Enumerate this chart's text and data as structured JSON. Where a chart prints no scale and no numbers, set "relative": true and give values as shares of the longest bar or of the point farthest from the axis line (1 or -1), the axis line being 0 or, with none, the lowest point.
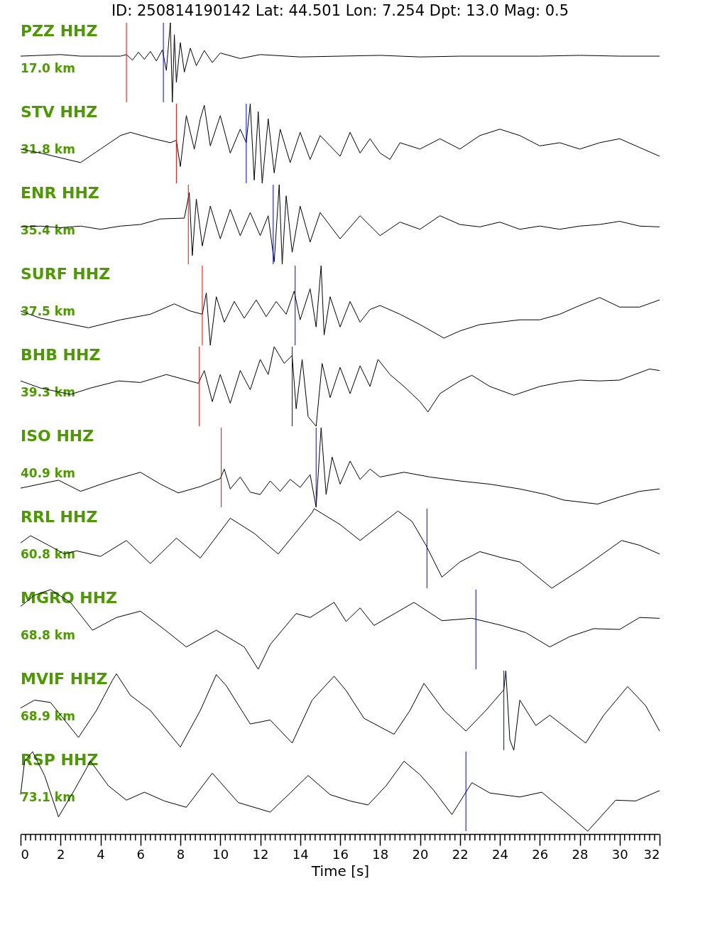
{
  "chart_data": [
    {
      "type": "line",
      "relative": true,
      "title": "ID: 250814190142 Lat:  44.501 Lon:   7.254 Dpt:    13.0 Mag:   0.5",
      "xlim": [
        0,
        32
      ],
      "tick_labels": false,
      "annotations": [
        "PZZ HHZ",
        "17.0 km"
      ],
      "ref_lines": [
        {
          "axis": "x",
          "value": 5.3,
          "color": "#ff0000"
        },
        {
          "axis": "x",
          "value": 7.15,
          "color": "#0000ff"
        }
      ],
      "series": [
        {
          "color": "#000000",
          "x": [
            0,
            1,
            2,
            3,
            4,
            5,
            5.3,
            5.6,
            5.9,
            6.2,
            6.5,
            6.8,
            7.1,
            7.3,
            7.5,
            7.6,
            7.7,
            7.8,
            8.0,
            8.2,
            8.5,
            8.8,
            9.2,
            9.6,
            10,
            11,
            12,
            14,
            16,
            18,
            20,
            22,
            24,
            26,
            28,
            30,
            32
          ],
          "values": [
            0.58,
            0.59,
            0.6,
            0.58,
            0.58,
            0.58,
            0.6,
            0.53,
            0.63,
            0.54,
            0.64,
            0.52,
            0.66,
            0.4,
            1.0,
            0.0,
            0.85,
            0.25,
            0.75,
            0.38,
            0.68,
            0.46,
            0.65,
            0.5,
            0.62,
            0.55,
            0.6,
            0.57,
            0.58,
            0.59,
            0.57,
            0.58,
            0.58,
            0.58,
            0.59,
            0.58,
            0.58
          ]
        }
      ]
    },
    {
      "type": "line",
      "relative": true,
      "xlim": [
        0,
        32
      ],
      "tick_labels": false,
      "annotations": [
        "STV HHZ",
        "31.8 km"
      ],
      "ref_lines": [
        {
          "axis": "x",
          "value": 7.8,
          "color": "#ff0000"
        },
        {
          "axis": "x",
          "value": 11.3,
          "color": "#0000ff"
        }
      ],
      "series": [
        {
          "color": "#000000",
          "x": [
            0,
            1,
            2,
            3,
            4,
            5,
            5.5,
            6.5,
            7.5,
            7.8,
            8.0,
            8.3,
            8.7,
            9.0,
            9.2,
            9.5,
            10.0,
            10.5,
            11.0,
            11.3,
            11.5,
            11.7,
            11.9,
            12.1,
            12.4,
            12.7,
            13.0,
            13.5,
            14,
            14.5,
            15,
            16,
            16.5,
            17,
            17.5,
            18,
            18.5,
            19,
            20,
            21,
            22,
            23,
            24,
            25,
            26,
            27,
            28,
            29,
            30,
            31,
            32
          ],
          "values": [
            0.43,
            0.38,
            0.32,
            0.26,
            0.43,
            0.6,
            0.64,
            0.57,
            0.51,
            0.54,
            0.21,
            0.85,
            0.43,
            0.81,
            0.98,
            0.47,
            0.85,
            0.38,
            0.68,
            0.51,
            1.0,
            0.04,
            0.9,
            0.0,
            0.81,
            0.13,
            0.68,
            0.26,
            0.64,
            0.3,
            0.6,
            0.34,
            0.64,
            0.38,
            0.56,
            0.38,
            0.3,
            0.51,
            0.43,
            0.56,
            0.43,
            0.6,
            0.68,
            0.6,
            0.47,
            0.51,
            0.43,
            0.51,
            0.56,
            0.45,
            0.34
          ]
        }
      ]
    },
    {
      "type": "line",
      "relative": true,
      "xlim": [
        0,
        32
      ],
      "tick_labels": false,
      "annotations": [
        "ENR HHZ",
        "35.4 km"
      ],
      "ref_lines": [
        {
          "axis": "x",
          "value": 8.4,
          "color": "#ff0000"
        },
        {
          "axis": "x",
          "value": 12.65,
          "color": "#0000ff"
        }
      ],
      "series": [
        {
          "color": "#000000",
          "x": [
            0,
            1,
            2,
            3,
            4,
            5,
            6,
            7,
            8.2,
            8.45,
            8.6,
            8.8,
            9.1,
            9.5,
            10,
            10.5,
            11,
            11.5,
            12,
            12.4,
            12.7,
            12.95,
            13.1,
            13.3,
            13.6,
            14,
            14.5,
            15,
            16,
            17,
            18,
            19,
            20,
            21,
            22,
            23,
            24,
            25,
            26,
            27,
            28,
            29,
            30,
            31,
            32
          ],
          "values": [
            0.47,
            0.48,
            0.46,
            0.48,
            0.44,
            0.48,
            0.5,
            0.57,
            0.58,
            0.9,
            0.11,
            0.82,
            0.23,
            0.73,
            0.32,
            0.69,
            0.36,
            0.65,
            0.36,
            0.61,
            0.03,
            1.0,
            0.0,
            0.86,
            0.15,
            0.73,
            0.28,
            0.65,
            0.32,
            0.61,
            0.36,
            0.53,
            0.44,
            0.61,
            0.5,
            0.47,
            0.53,
            0.44,
            0.48,
            0.44,
            0.48,
            0.5,
            0.54,
            0.48,
            0.47
          ]
        }
      ]
    },
    {
      "type": "line",
      "relative": true,
      "xlim": [
        0,
        32
      ],
      "tick_labels": false,
      "annotations": [
        "SURF HHZ",
        "37.5 km"
      ],
      "ref_lines": [
        {
          "axis": "x",
          "value": 9.1,
          "color": "#ff0000"
        },
        {
          "axis": "x",
          "value": 13.75,
          "color": "#0000ff"
        }
      ],
      "series": [
        {
          "color": "#000000",
          "x": [
            0,
            1,
            2,
            3.4,
            5,
            6.5,
            7.7,
            8.5,
            9.1,
            9.3,
            9.5,
            9.8,
            10.2,
            10.7,
            11.2,
            11.8,
            12.3,
            12.8,
            13.3,
            13.7,
            14.0,
            14.5,
            14.8,
            15.05,
            15.2,
            15.5,
            16,
            16.5,
            17,
            17.5,
            18,
            19,
            20,
            21.2,
            22,
            23,
            24,
            25,
            26,
            27,
            28,
            29,
            30,
            31,
            32
          ],
          "values": [
            0.43,
            0.34,
            0.29,
            0.22,
            0.32,
            0.39,
            0.52,
            0.43,
            0.39,
            0.66,
            0.0,
            0.61,
            0.29,
            0.55,
            0.34,
            0.57,
            0.36,
            0.55,
            0.39,
            0.68,
            0.32,
            0.71,
            0.23,
            1.0,
            0.13,
            0.61,
            0.23,
            0.55,
            0.29,
            0.45,
            0.5,
            0.39,
            0.26,
            0.09,
            0.18,
            0.26,
            0.29,
            0.32,
            0.32,
            0.39,
            0.5,
            0.6,
            0.48,
            0.48,
            0.57
          ]
        }
      ]
    },
    {
      "type": "line",
      "relative": true,
      "xlim": [
        0,
        32
      ],
      "tick_labels": false,
      "annotations": [
        "BHB HHZ",
        "39.3 km"
      ],
      "ref_lines": [
        {
          "axis": "x",
          "value": 8.95,
          "color": "#ff0000"
        },
        {
          "axis": "x",
          "value": 13.6,
          "color": "#0000ff"
        }
      ],
      "series": [
        {
          "color": "#000000",
          "x": [
            0,
            1,
            2.5,
            3.5,
            4.9,
            6,
            7.3,
            8.9,
            9.2,
            9.6,
            10,
            10.5,
            11,
            11.5,
            12,
            12.4,
            12.7,
            13.2,
            13.6,
            13.8,
            14.1,
            14.4,
            14.8,
            15.1,
            15.5,
            16,
            16.5,
            17,
            17.5,
            17.9,
            18.5,
            19.2,
            20,
            20.4,
            21,
            22,
            22.6,
            23.5,
            24.7,
            26,
            27,
            28,
            29,
            30,
            31.5,
            32
          ],
          "values": [
            0.57,
            0.48,
            0.4,
            0.48,
            0.57,
            0.55,
            0.65,
            0.54,
            0.7,
            0.31,
            0.65,
            0.29,
            0.7,
            0.46,
            0.84,
            0.65,
            1.0,
            0.79,
            0.89,
            0.22,
            0.84,
            0.12,
            0.0,
            0.79,
            0.36,
            0.74,
            0.41,
            0.76,
            0.5,
            0.84,
            0.65,
            0.5,
            0.31,
            0.18,
            0.41,
            0.57,
            0.64,
            0.5,
            0.39,
            0.5,
            0.55,
            0.58,
            0.57,
            0.58,
            0.72,
            0.7
          ]
        }
      ]
    },
    {
      "type": "line",
      "relative": true,
      "xlim": [
        0,
        32
      ],
      "tick_labels": false,
      "annotations": [
        "ISO HHZ",
        "40.9 km"
      ],
      "ref_lines": [
        {
          "axis": "x",
          "value": 10.05,
          "color": "#ff0000"
        },
        {
          "axis": "x",
          "value": 14.8,
          "color": "#0000ff"
        }
      ],
      "series": [
        {
          "color": "#000000",
          "x": [
            0,
            1.9,
            3,
            4.5,
            6,
            7,
            7.9,
            9,
            10,
            10.2,
            10.5,
            11,
            11.5,
            12,
            12.5,
            13,
            13.5,
            14,
            14.5,
            14.8,
            15.05,
            15.3,
            15.6,
            16,
            16.5,
            17,
            17.5,
            18,
            19.2,
            20.5,
            22,
            23.5,
            25,
            26.3,
            27.2,
            28.9,
            30,
            31,
            32
          ],
          "values": [
            0.24,
            0.34,
            0.2,
            0.33,
            0.44,
            0.29,
            0.18,
            0.26,
            0.36,
            0.48,
            0.23,
            0.38,
            0.19,
            0.16,
            0.33,
            0.2,
            0.35,
            0.25,
            0.41,
            0.0,
            1.0,
            0.16,
            0.63,
            0.29,
            0.58,
            0.35,
            0.48,
            0.38,
            0.44,
            0.38,
            0.33,
            0.29,
            0.23,
            0.16,
            0.09,
            0.04,
            0.13,
            0.2,
            0.23
          ]
        }
      ]
    },
    {
      "type": "line",
      "relative": true,
      "xlim": [
        0,
        32
      ],
      "tick_labels": false,
      "annotations": [
        "RRL HHZ",
        "60.8 km"
      ],
      "ref_lines": [
        {
          "axis": "x",
          "value": 20.35,
          "color": "#0000ff"
        }
      ],
      "series": [
        {
          "color": "#000000",
          "x": [
            0,
            0.5,
            1.4,
            2.2,
            2.8,
            4.0,
            5.3,
            6.5,
            7.8,
            9.0,
            10.5,
            11.7,
            12.9,
            14.6,
            14.7,
            16.0,
            17.0,
            18.9,
            19.6,
            20.3,
            21.1,
            22.0,
            23.0,
            24.0,
            25.0,
            26.6,
            28.2,
            30.1,
            31.0,
            32
          ],
          "values": [
            0.57,
            0.66,
            0.54,
            0.43,
            0.47,
            0.4,
            0.6,
            0.31,
            0.63,
            0.38,
            0.88,
            0.69,
            0.43,
            0.95,
            1.0,
            0.8,
            0.6,
            0.97,
            0.84,
            0.54,
            0.14,
            0.33,
            0.46,
            0.39,
            0.33,
            0.0,
            0.26,
            0.6,
            0.54,
            0.43
          ]
        }
      ]
    },
    {
      "type": "line",
      "relative": true,
      "xlim": [
        0,
        32
      ],
      "tick_labels": false,
      "annotations": [
        "MGRO HHZ",
        "68.8 km"
      ],
      "ref_lines": [
        {
          "axis": "x",
          "value": 22.8,
          "color": "#0000ff"
        }
      ],
      "series": [
        {
          "color": "#000000",
          "x": [
            0,
            0.7,
            1.5,
            2.5,
            3.6,
            4.8,
            6.0,
            7.2,
            8.3,
            9.8,
            11.2,
            11.9,
            12.5,
            13.8,
            14.5,
            15.7,
            16.3,
            17.0,
            17.7,
            19.7,
            21.1,
            22.6,
            24.1,
            25.3,
            26.5,
            27.5,
            28.7,
            30,
            31,
            32
          ],
          "values": [
            0.79,
            0.93,
            1.0,
            0.84,
            0.49,
            0.65,
            0.73,
            0.5,
            0.28,
            0.49,
            0.28,
            0.0,
            0.31,
            0.7,
            0.65,
            0.84,
            0.6,
            0.77,
            0.55,
            0.84,
            0.61,
            0.64,
            0.55,
            0.46,
            0.28,
            0.41,
            0.51,
            0.5,
            0.65,
            0.64
          ]
        }
      ]
    },
    {
      "type": "line",
      "relative": true,
      "xlim": [
        0,
        32
      ],
      "tick_labels": false,
      "annotations": [
        "MVIF HHZ",
        "68.9 km"
      ],
      "ref_lines": [
        {
          "axis": "x",
          "value": 24.2,
          "color": "#0000ff"
        }
      ],
      "series": [
        {
          "color": "#000000",
          "x": [
            0,
            0.7,
            1.5,
            2.9,
            3.8,
            4.6,
            4.8,
            5.5,
            6.5,
            8.0,
            9.0,
            9.8,
            10.3,
            11.5,
            12.5,
            13.6,
            14.6,
            15.7,
            16.3,
            17.2,
            18.7,
            19.5,
            20.2,
            21.2,
            22.3,
            23.3,
            24.2,
            24.3,
            24.5,
            24.7,
            25.0,
            25.8,
            26.5,
            28.3,
            29.2,
            30.4,
            31.3,
            32
          ],
          "values": [
            0.53,
            0.63,
            0.6,
            0.16,
            0.5,
            0.88,
            0.96,
            0.69,
            0.5,
            0.04,
            0.5,
            0.95,
            0.81,
            0.33,
            0.38,
            0.09,
            0.63,
            0.93,
            0.75,
            0.4,
            0.2,
            0.5,
            0.84,
            0.5,
            0.24,
            0.5,
            0.76,
            1.0,
            0.13,
            0.0,
            0.63,
            0.31,
            0.44,
            0.09,
            0.44,
            0.8,
            0.56,
            0.24
          ]
        }
      ]
    },
    {
      "type": "line",
      "relative": true,
      "xlim": [
        0,
        32
      ],
      "tick_labels": "x",
      "xlabel": "Time [s]",
      "annotations": [
        "RSP HHZ",
        "73.1 km"
      ],
      "ref_lines": [
        {
          "axis": "x",
          "value": 22.3,
          "color": "#0000ff"
        }
      ],
      "xticks": [
        0,
        {
          "value": 0.25,
          "label": null
        },
        {
          "value": 0.5,
          "label": null
        },
        {
          "value": 0.75,
          "label": null
        },
        {
          "value": 1,
          "label": null
        },
        {
          "value": 1.25,
          "label": null
        },
        {
          "value": 1.5,
          "label": null
        },
        {
          "value": 1.75,
          "label": null
        },
        2,
        {
          "value": 2.25,
          "label": null
        },
        {
          "value": 2.5,
          "label": null
        },
        {
          "value": 2.75,
          "label": null
        },
        {
          "value": 3,
          "label": null
        },
        {
          "value": 3.25,
          "label": null
        },
        {
          "value": 3.5,
          "label": null
        },
        {
          "value": 3.75,
          "label": null
        },
        4,
        {
          "value": 4.25,
          "label": null
        },
        {
          "value": 4.5,
          "label": null
        },
        {
          "value": 4.75,
          "label": null
        },
        {
          "value": 5,
          "label": null
        },
        {
          "value": 5.25,
          "label": null
        },
        {
          "value": 5.5,
          "label": null
        },
        {
          "value": 5.75,
          "label": null
        },
        6,
        {
          "value": 6.25,
          "label": null
        },
        {
          "value": 6.5,
          "label": null
        },
        {
          "value": 6.75,
          "label": null
        },
        {
          "value": 7,
          "label": null
        },
        {
          "value": 7.25,
          "label": null
        },
        {
          "value": 7.5,
          "label": null
        },
        {
          "value": 7.75,
          "label": null
        },
        8,
        {
          "value": 8.25,
          "label": null
        },
        {
          "value": 8.5,
          "label": null
        },
        {
          "value": 8.75,
          "label": null
        },
        {
          "value": 9,
          "label": null
        },
        {
          "value": 9.25,
          "label": null
        },
        {
          "value": 9.5,
          "label": null
        },
        {
          "value": 9.75,
          "label": null
        },
        10,
        {
          "value": 10.25,
          "label": null
        },
        {
          "value": 10.5,
          "label": null
        },
        {
          "value": 10.75,
          "label": null
        },
        {
          "value": 11,
          "label": null
        },
        {
          "value": 11.25,
          "label": null
        },
        {
          "value": 11.5,
          "label": null
        },
        {
          "value": 11.75,
          "label": null
        },
        12,
        {
          "value": 12.25,
          "label": null
        },
        {
          "value": 12.5,
          "label": null
        },
        {
          "value": 12.75,
          "label": null
        },
        {
          "value": 13,
          "label": null
        },
        {
          "value": 13.25,
          "label": null
        },
        {
          "value": 13.5,
          "label": null
        },
        {
          "value": 13.75,
          "label": null
        },
        14,
        {
          "value": 14.25,
          "label": null
        },
        {
          "value": 14.5,
          "label": null
        },
        {
          "value": 14.75,
          "label": null
        },
        {
          "value": 15,
          "label": null
        },
        {
          "value": 15.25,
          "label": null
        },
        {
          "value": 15.5,
          "label": null
        },
        {
          "value": 15.75,
          "label": null
        },
        16,
        {
          "value": 16.25,
          "label": null
        },
        {
          "value": 16.5,
          "label": null
        },
        {
          "value": 16.75,
          "label": null
        },
        {
          "value": 17,
          "label": null
        },
        {
          "value": 17.25,
          "label": null
        },
        {
          "value": 17.5,
          "label": null
        },
        {
          "value": 17.75,
          "label": null
        },
        18,
        {
          "value": 18.25,
          "label": null
        },
        {
          "value": 18.5,
          "label": null
        },
        {
          "value": 18.75,
          "label": null
        },
        {
          "value": 19,
          "label": null
        },
        {
          "value": 19.25,
          "label": null
        },
        {
          "value": 19.5,
          "label": null
        },
        {
          "value": 19.75,
          "label": null
        },
        20,
        {
          "value": 20.25,
          "label": null
        },
        {
          "value": 20.5,
          "label": null
        },
        {
          "value": 20.75,
          "label": null
        },
        {
          "value": 21,
          "label": null
        },
        {
          "value": 21.25,
          "label": null
        },
        {
          "value": 21.5,
          "label": null
        },
        {
          "value": 21.75,
          "label": null
        },
        22,
        {
          "value": 22.25,
          "label": null
        },
        {
          "value": 22.5,
          "label": null
        },
        {
          "value": 22.75,
          "label": null
        },
        {
          "value": 23,
          "label": null
        },
        {
          "value": 23.25,
          "label": null
        },
        {
          "value": 23.5,
          "label": null
        },
        {
          "value": 23.75,
          "label": null
        },
        24,
        {
          "value": 24.25,
          "label": null
        },
        {
          "value": 24.5,
          "label": null
        },
        {
          "value": 24.75,
          "label": null
        },
        {
          "value": 25,
          "label": null
        },
        {
          "value": 25.25,
          "label": null
        },
        {
          "value": 25.5,
          "label": null
        },
        {
          "value": 25.75,
          "label": null
        },
        26,
        {
          "value": 26.25,
          "label": null
        },
        {
          "value": 26.5,
          "label": null
        },
        {
          "value": 26.75,
          "label": null
        },
        {
          "value": 27,
          "label": null
        },
        {
          "value": 27.25,
          "label": null
        },
        {
          "value": 27.5,
          "label": null
        },
        {
          "value": 27.75,
          "label": null
        },
        28,
        {
          "value": 28.25,
          "label": null
        },
        {
          "value": 28.5,
          "label": null
        },
        {
          "value": 28.75,
          "label": null
        },
        {
          "value": 29,
          "label": null
        },
        {
          "value": 29.25,
          "label": null
        },
        {
          "value": 29.5,
          "label": null
        },
        {
          "value": 29.75,
          "label": null
        },
        30,
        {
          "value": 30.25,
          "label": null
        },
        {
          "value": 30.5,
          "label": null
        },
        {
          "value": 30.75,
          "label": null
        },
        {
          "value": 31,
          "label": null
        },
        {
          "value": 31.25,
          "label": null
        },
        {
          "value": 31.5,
          "label": null
        },
        {
          "value": 31.75,
          "label": null
        },
        32
      ],
      "series": [
        {
          "color": "#000000",
          "x": [
            0,
            0.2,
            0.6,
            1.2,
            1.9,
            2.7,
            3.5,
            4.4,
            5.3,
            6.2,
            7.2,
            8.3,
            9.6,
            10.9,
            12.5,
            13.5,
            14.4,
            15.5,
            16.5,
            17.4,
            18.3,
            19.2,
            20.0,
            20.7,
            21.6,
            22.6,
            23.5,
            25.0,
            26.1,
            27.3,
            28.4,
            29.8,
            30.8,
            32
          ],
          "values": [
            0.46,
            0.88,
            1.0,
            0.7,
            0.18,
            0.52,
            0.88,
            0.57,
            0.39,
            0.49,
            0.38,
            0.3,
            0.73,
            0.36,
            0.24,
            0.48,
            0.7,
            0.46,
            0.38,
            0.33,
            0.57,
            0.88,
            0.71,
            0.51,
            0.21,
            0.61,
            0.48,
            0.43,
            0.49,
            0.24,
            0.0,
            0.39,
            0.38,
            0.51
          ]
        }
      ]
    }
  ]
}
